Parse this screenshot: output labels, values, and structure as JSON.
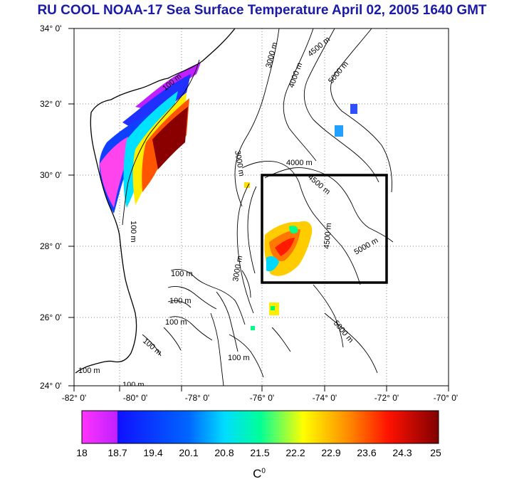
{
  "title": "RU COOL  NOAA-17 Sea Surface Temperature April 02, 2005 1640 GMT",
  "y_ticks": [
    "34° 0'",
    "32° 0'",
    "30° 0'",
    "28° 0'",
    "26° 0'",
    "24° 0'"
  ],
  "x_ticks": [
    "-82° 0'",
    "-80° 0'",
    "-78° 0'",
    "-76° 0'",
    "-74° 0'",
    "-72° 0'",
    "-70° 0'"
  ],
  "depth_labels": {
    "d100": "100 m",
    "d3000": "3000 m",
    "d4000": "4000 m",
    "d4500": "4500 m",
    "d5000": "5000 m"
  },
  "colorbar": {
    "ticks": [
      "18",
      "18.7",
      "19.4",
      "20.1",
      "20.8",
      "21.5",
      "22.2",
      "22.9",
      "23.6",
      "24.3",
      "25"
    ],
    "unit": "C",
    "unit_sup": "0",
    "colors": [
      "#ff33ff",
      "#0000ff",
      "#00ffff",
      "#ffff00",
      "#ff8800",
      "#ff0000",
      "#7a0000"
    ]
  },
  "study_box": {
    "lon": [
      -76,
      -72
    ],
    "lat": [
      27,
      30
    ]
  }
}
